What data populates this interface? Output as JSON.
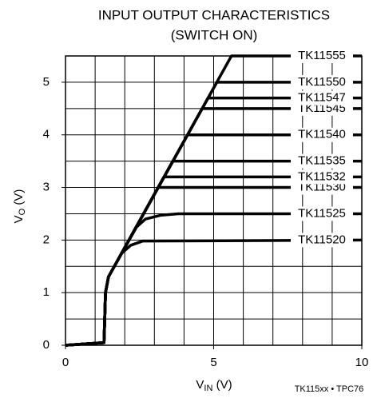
{
  "chart_data": {
    "type": "line",
    "title": [
      "INPUT OUTPUT CHARACTERISTICS",
      "(SWITCH ON)"
    ],
    "xlabel": {
      "main": "V",
      "sub": "IN",
      "unit": " (V)"
    },
    "ylabel": {
      "main": "V",
      "sub": "O",
      "unit": " (V)"
    },
    "footnote": "TK115xx • TPC76",
    "xlim": [
      0,
      10
    ],
    "ylim": [
      0,
      5.5
    ],
    "xticks": [
      0,
      5,
      10
    ],
    "yticks": [
      0,
      1,
      2,
      3,
      4,
      5
    ],
    "xgrid": [
      1,
      2,
      3,
      4,
      5,
      6,
      7,
      8,
      9
    ],
    "ygrid": [
      0.5,
      1,
      1.5,
      2,
      2.5,
      3,
      3.5,
      4,
      4.5,
      5
    ],
    "color": "#000000",
    "series": [
      {
        "name": "TK11520",
        "x": [
          0,
          1.3,
          1.35,
          1.45,
          1.9,
          2.2,
          2.6,
          10
        ],
        "values": [
          0,
          0.05,
          1.0,
          1.3,
          1.75,
          1.9,
          1.98,
          2.0
        ]
      },
      {
        "name": "TK11525",
        "x": [
          0,
          1.3,
          1.35,
          1.45,
          2.4,
          2.7,
          3.2,
          3.8,
          10
        ],
        "values": [
          0,
          0.05,
          1.0,
          1.3,
          2.25,
          2.4,
          2.47,
          2.5,
          2.5
        ]
      },
      {
        "name": "TK11530",
        "x": [
          0,
          1.3,
          1.35,
          1.45,
          3.13,
          10
        ],
        "values": [
          0,
          0.05,
          1.0,
          1.3,
          3.0,
          3.0
        ]
      },
      {
        "name": "TK11532",
        "x": [
          0,
          1.3,
          1.35,
          1.45,
          3.32,
          10
        ],
        "values": [
          0,
          0.05,
          1.0,
          1.3,
          3.2,
          3.2
        ]
      },
      {
        "name": "TK11535",
        "x": [
          0,
          1.3,
          1.35,
          1.45,
          3.62,
          10
        ],
        "values": [
          0,
          0.05,
          1.0,
          1.3,
          3.5,
          3.5
        ]
      },
      {
        "name": "TK11540",
        "x": [
          0,
          1.3,
          1.35,
          1.45,
          4.12,
          10
        ],
        "values": [
          0,
          0.05,
          1.0,
          1.3,
          4.0,
          4.0
        ]
      },
      {
        "name": "TK11545",
        "x": [
          0,
          1.3,
          1.35,
          1.45,
          4.61,
          10
        ],
        "values": [
          0,
          0.05,
          1.0,
          1.3,
          4.5,
          4.5
        ]
      },
      {
        "name": "TK11547",
        "x": [
          0,
          1.3,
          1.35,
          1.45,
          4.81,
          10
        ],
        "values": [
          0,
          0.05,
          1.0,
          1.3,
          4.7,
          4.7
        ]
      },
      {
        "name": "TK11550",
        "x": [
          0,
          1.3,
          1.35,
          1.45,
          5.11,
          10
        ],
        "values": [
          0,
          0.05,
          1.0,
          1.3,
          5.0,
          5.0
        ]
      },
      {
        "name": "TK11555",
        "x": [
          0,
          1.3,
          1.35,
          1.45,
          5.6,
          10
        ],
        "values": [
          0,
          0.05,
          1.0,
          1.3,
          5.5,
          5.5
        ]
      }
    ]
  }
}
